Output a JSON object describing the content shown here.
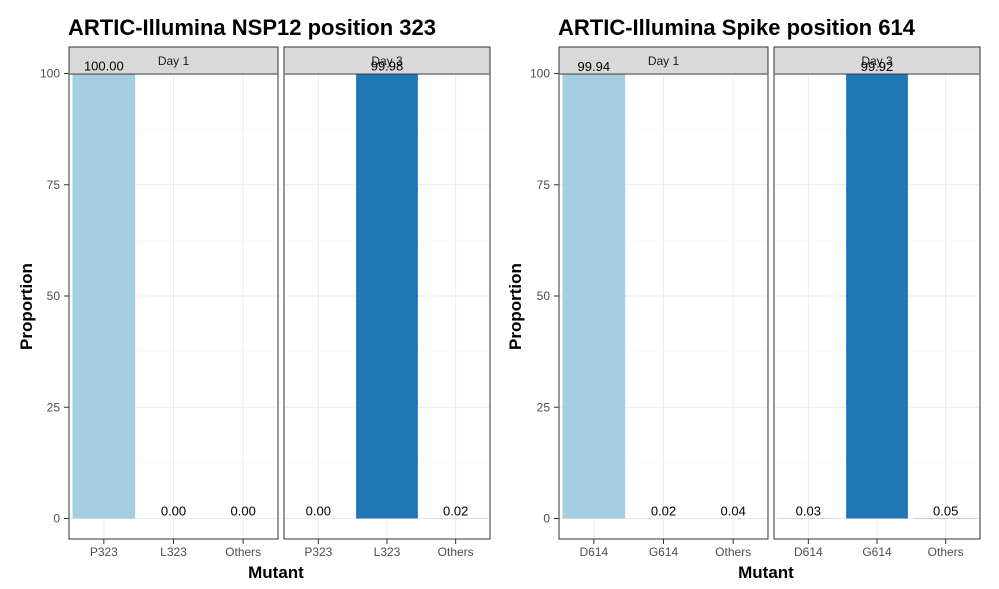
{
  "chart_data": [
    {
      "type": "bar",
      "title": "ARTIC-Illumina NSP12 position 323",
      "xlabel": "Mutant",
      "ylabel": "Proportion",
      "ylim": [
        0,
        100
      ],
      "yticks": [
        0,
        25,
        50,
        75,
        100
      ],
      "grid": true,
      "facets": [
        {
          "label": "Day 1",
          "categories": [
            "P323",
            "L323",
            "Others"
          ],
          "values": [
            100.0,
            0.0,
            0.0
          ],
          "value_labels": [
            "100.00",
            "0.00",
            "0.00"
          ],
          "colors": [
            "#a6cee3",
            "#a6cee3",
            "#a6cee3"
          ]
        },
        {
          "label": "Day 3",
          "categories": [
            "P323",
            "L323",
            "Others"
          ],
          "values": [
            0.0,
            99.98,
            0.02
          ],
          "value_labels": [
            "0.00",
            "99.98",
            "0.02"
          ],
          "colors": [
            "#1f78b4",
            "#1f78b4",
            "#1f78b4"
          ]
        }
      ]
    },
    {
      "type": "bar",
      "title": "ARTIC-Illumina Spike position 614",
      "xlabel": "Mutant",
      "ylabel": "Proportion",
      "ylim": [
        0,
        100
      ],
      "yticks": [
        0,
        25,
        50,
        75,
        100
      ],
      "grid": true,
      "facets": [
        {
          "label": "Day 1",
          "categories": [
            "D614",
            "G614",
            "Others"
          ],
          "values": [
            99.94,
            0.02,
            0.04
          ],
          "value_labels": [
            "99.94",
            "0.02",
            "0.04"
          ],
          "colors": [
            "#a6cee3",
            "#a6cee3",
            "#a6cee3"
          ]
        },
        {
          "label": "Day 3",
          "categories": [
            "D614",
            "G614",
            "Others"
          ],
          "values": [
            0.03,
            99.92,
            0.05
          ],
          "value_labels": [
            "0.03",
            "99.92",
            "0.05"
          ],
          "colors": [
            "#1f78b4",
            "#1f78b4",
            "#1f78b4"
          ]
        }
      ]
    }
  ]
}
